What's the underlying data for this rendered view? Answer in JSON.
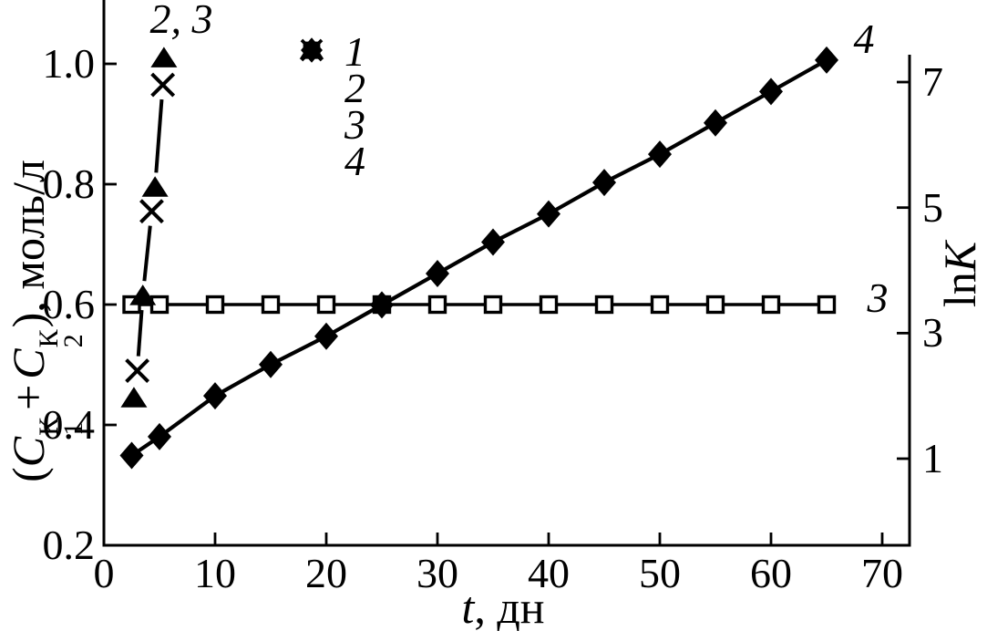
{
  "chart_data": {
    "type": "line",
    "title": "",
    "x_axis": {
      "label_italic": "t",
      "label_rest": ", дн",
      "range": [
        0,
        72.5
      ],
      "ticks": [
        0,
        10,
        20,
        30,
        40,
        50,
        60,
        70
      ],
      "ticks_display": [
        "0",
        "10",
        "20",
        "30",
        "40",
        "50",
        "60",
        "70"
      ]
    },
    "y_axis_left": {
      "label_full": "(C1К + C2К), моль/л",
      "label_parts": {
        "open": "(",
        "c": "C",
        "sup": "К",
        "sub1": "1",
        "plus": "+",
        "sub2": "2",
        "close": "), моль/л"
      },
      "range": [
        0.2,
        1.11
      ],
      "ticks": [
        1.0,
        0.8,
        0.6,
        0.4,
        0.2
      ],
      "ticks_display": [
        "1.0",
        "0.8",
        "0.6",
        "0.4",
        "0.2"
      ]
    },
    "y_axis_right": {
      "label_full": "lnK",
      "label_parts": {
        "upright": "ln",
        "italic": "K"
      },
      "range": [
        -0.4,
        7.45
      ],
      "ticks": [
        7,
        5,
        3,
        1
      ],
      "ticks_display": [
        "7",
        "5",
        "3",
        "1"
      ]
    },
    "series": [
      {
        "name": "1",
        "marker": "open-square",
        "axis": "left",
        "line": "solid",
        "x": [
          2.5,
          5,
          10,
          15,
          20,
          25,
          30,
          35,
          40,
          45,
          50,
          55,
          60,
          65
        ],
        "y": [
          0.6,
          0.6,
          0.6,
          0.6,
          0.6,
          0.6,
          0.6,
          0.6,
          0.6,
          0.6,
          0.6,
          0.6,
          0.6,
          0.6
        ]
      },
      {
        "name": "2",
        "marker": "filled-triangle",
        "axis": "left",
        "line": "steep-connector",
        "x": [
          2.7,
          3.5,
          4.6,
          5.4
        ],
        "y": [
          0.445,
          0.615,
          0.795,
          1.01
        ]
      },
      {
        "name": "3",
        "marker": "x-cross",
        "axis": "left",
        "line": "steep-connector",
        "x": [
          3.0,
          4.3,
          5.3
        ],
        "y": [
          0.49,
          0.755,
          0.965
        ]
      },
      {
        "name": "4",
        "marker": "filled-diamond",
        "axis": "right",
        "line": "solid",
        "x": [
          2.5,
          5,
          10,
          15,
          20,
          25,
          30,
          35,
          40,
          45,
          50,
          55,
          60,
          65
        ],
        "y": [
          1.05,
          1.35,
          2.0,
          2.5,
          2.95,
          3.45,
          3.95,
          4.45,
          4.9,
          5.4,
          5.85,
          6.35,
          6.85,
          7.35
        ]
      }
    ],
    "legend": [
      {
        "symbol": "open-square",
        "label": "1"
      },
      {
        "symbol": "filled-triangle",
        "label": "2"
      },
      {
        "symbol": "x-cross",
        "label": "3"
      },
      {
        "symbol": "filled-diamond",
        "label": "4"
      }
    ],
    "annotations": [
      {
        "text": "2, 3",
        "refers_to": "curves 2 and 3"
      },
      {
        "text": "4",
        "refers_to": "curve 4"
      },
      {
        "text": "3",
        "refers_to": "squares line right end"
      }
    ],
    "colors": {
      "ink": "#000000",
      "background": "#ffffff"
    },
    "grid": false,
    "legend_position": "top-left-inside"
  }
}
